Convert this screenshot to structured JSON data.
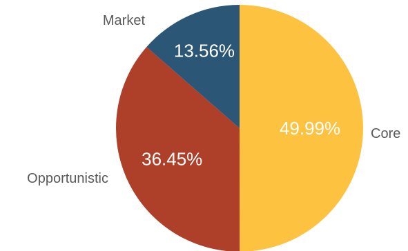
{
  "chart_data": {
    "type": "pie",
    "title": "",
    "slices": [
      {
        "label": "Core",
        "value": 49.99,
        "value_label": "49.99%",
        "color": "#FDC240"
      },
      {
        "label": "Opportunistic",
        "value": 36.45,
        "value_label": "36.45%",
        "color": "#AE402A"
      },
      {
        "label": "Market",
        "value": 13.56,
        "value_label": "13.56%",
        "color": "#2B5676"
      }
    ],
    "start_angle_deg": 0,
    "direction": "clockwise",
    "legend": "none"
  }
}
